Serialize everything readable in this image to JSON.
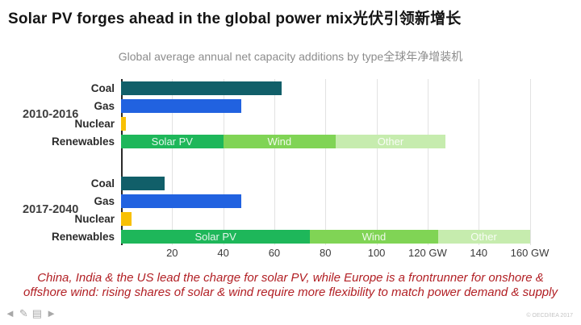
{
  "page": {
    "title": "Solar PV forges ahead in the global power mix光伏引领新增长",
    "subtitle": "Global average annual net capacity additions by type全球年净增装机",
    "caption": "China, India & the US lead the charge for solar PV, while Europe is a frontrunner for onshore & offshore wind: rising shares of solar & wind require more flexibility to match power demand & supply",
    "copyright": "© OECD/IEA 2017"
  },
  "toolbar": {
    "icons": [
      {
        "name": "arrow-left-icon",
        "glyph": "◄"
      },
      {
        "name": "pen-icon",
        "glyph": "✎"
      },
      {
        "name": "list-icon",
        "glyph": "▤"
      },
      {
        "name": "arrow-right-icon",
        "glyph": "►"
      }
    ]
  },
  "colors": {
    "coal": "#115f69",
    "gas": "#2162e0",
    "nuclear": "#f8c004",
    "solar_pv": "#1eb75a",
    "wind": "#80d455",
    "other": "#c6ecae",
    "accent_red": "#b22025",
    "gridline": "#e2e2e2"
  },
  "chart_data": {
    "type": "bar",
    "orientation": "horizontal",
    "title": "Global average annual net capacity additions by type",
    "unit": "GW",
    "xlim": [
      0,
      175
    ],
    "grid_ticks": [
      20,
      40,
      60,
      80,
      100,
      120,
      140,
      160,
      180
    ],
    "xticks": [
      {
        "value": 20,
        "label": "20"
      },
      {
        "value": 40,
        "label": "40"
      },
      {
        "value": 60,
        "label": "60"
      },
      {
        "value": 80,
        "label": "80"
      },
      {
        "value": 100,
        "label": "100"
      },
      {
        "value": 120,
        "label": "120 GW"
      },
      {
        "value": 140,
        "label": "140"
      },
      {
        "value": 160,
        "label": "160 GW"
      }
    ],
    "legend_position": "none",
    "grid": true,
    "groups": [
      {
        "label": "2010-2016",
        "bars": [
          {
            "category": "Coal",
            "value": 63,
            "color_key": "coal"
          },
          {
            "category": "Gas",
            "value": 47,
            "color_key": "gas"
          },
          {
            "category": "Nuclear",
            "value": 2,
            "color_key": "nuclear"
          },
          {
            "category": "Renewables",
            "segments": [
              {
                "label": "Solar PV",
                "value": 40,
                "color_key": "solar_pv"
              },
              {
                "label": "Wind",
                "value": 44,
                "color_key": "wind"
              },
              {
                "label": "Other",
                "value": 43,
                "color_key": "other"
              }
            ]
          }
        ]
      },
      {
        "label": "2017-2040",
        "bars": [
          {
            "category": "Coal",
            "value": 17,
            "color_key": "coal"
          },
          {
            "category": "Gas",
            "value": 47,
            "color_key": "gas"
          },
          {
            "category": "Nuclear",
            "value": 4,
            "color_key": "nuclear"
          },
          {
            "category": "Renewables",
            "segments": [
              {
                "label": "Solar PV",
                "value": 74,
                "color_key": "solar_pv"
              },
              {
                "label": "Wind",
                "value": 50,
                "color_key": "wind"
              },
              {
                "label": "Other",
                "value": 36,
                "color_key": "other"
              }
            ]
          }
        ]
      }
    ]
  }
}
